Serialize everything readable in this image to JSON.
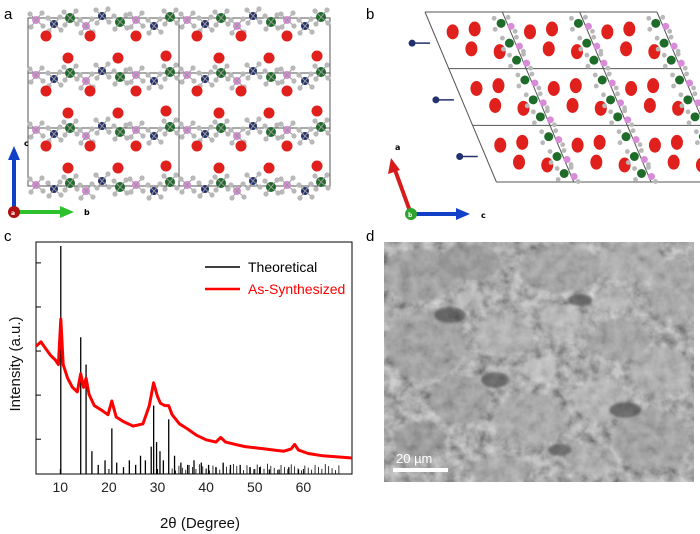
{
  "panels": {
    "a": {
      "label": "a",
      "axes": {
        "c": "c",
        "a": "a",
        "b": "b"
      }
    },
    "b": {
      "label": "b",
      "axes": {
        "a": "a",
        "b": "b",
        "c": "c"
      }
    },
    "c": {
      "label": "c"
    },
    "d": {
      "label": "d",
      "scale_bar": "20 µm"
    }
  },
  "colors": {
    "oxygen": "#e0201c",
    "metal": "#1f6b2a",
    "phosphorus": "#d98ad8",
    "nitrogen": "#23306e",
    "hydrogen": "#b8b8b8",
    "theoretical": "#000000",
    "synthesized": "#ff0000",
    "axis_c_blue": "#1040c8",
    "axis_b_green": "#2ec12e",
    "axis_a_red": "#d81a1a"
  },
  "chart_data": {
    "type": "line",
    "xlabel": "2θ (Degree)",
    "ylabel": "Intensity (a.u.)",
    "xlim": [
      5,
      70
    ],
    "xticks": [
      10,
      20,
      30,
      40,
      50,
      60
    ],
    "y_tick_labels_shown": false,
    "legend_position": "top-right",
    "series": [
      {
        "name": "Theoretical",
        "kind": "stick",
        "x": [
          10.1,
          14.2,
          15.3,
          16.5,
          17.8,
          19.2,
          20.6,
          21.6,
          23.0,
          24.2,
          25.5,
          26.5,
          27.5,
          28.7,
          29.2,
          29.8,
          30.5,
          31.2,
          32.3,
          33.5,
          34.8,
          36.2,
          37.5,
          39.0,
          40.5,
          42.0,
          43.5,
          45.0,
          47.0,
          49.0,
          51.0,
          53.0,
          55.0,
          57.0,
          59.0
        ],
        "values": [
          100,
          60,
          48,
          10,
          4,
          6,
          20,
          5,
          3,
          6,
          4,
          8,
          6,
          12,
          30,
          14,
          10,
          6,
          24,
          8,
          5,
          4,
          6,
          5,
          4,
          3,
          5,
          4,
          4,
          3,
          3,
          2,
          2,
          3,
          2
        ]
      },
      {
        "name": "As-Synthesized",
        "kind": "line",
        "x": [
          5,
          6,
          7,
          8,
          9,
          9.6,
          10.1,
          10.6,
          11.5,
          12.5,
          13.5,
          14.2,
          14.8,
          15.3,
          15.9,
          17,
          18.5,
          19.8,
          20.6,
          21.5,
          23,
          25,
          27,
          28.3,
          29.2,
          30,
          30.6,
          31.5,
          32.3,
          33,
          34.5,
          36,
          38,
          40,
          42,
          43,
          44,
          46,
          48,
          50,
          52,
          54,
          56,
          57.5,
          58.2,
          59,
          61,
          64,
          67,
          70
        ],
        "values": [
          56,
          58,
          55,
          52,
          50,
          48,
          68,
          48,
          42,
          38,
          36,
          44,
          38,
          42,
          35,
          30,
          28,
          26,
          32,
          25,
          23,
          21,
          22,
          30,
          40,
          34,
          31,
          30,
          30,
          26,
          22,
          20,
          17,
          15,
          14,
          16,
          14,
          13,
          12,
          11.5,
          11,
          10.5,
          10,
          11,
          13,
          10.5,
          9,
          8,
          7.5,
          7
        ]
      }
    ]
  }
}
